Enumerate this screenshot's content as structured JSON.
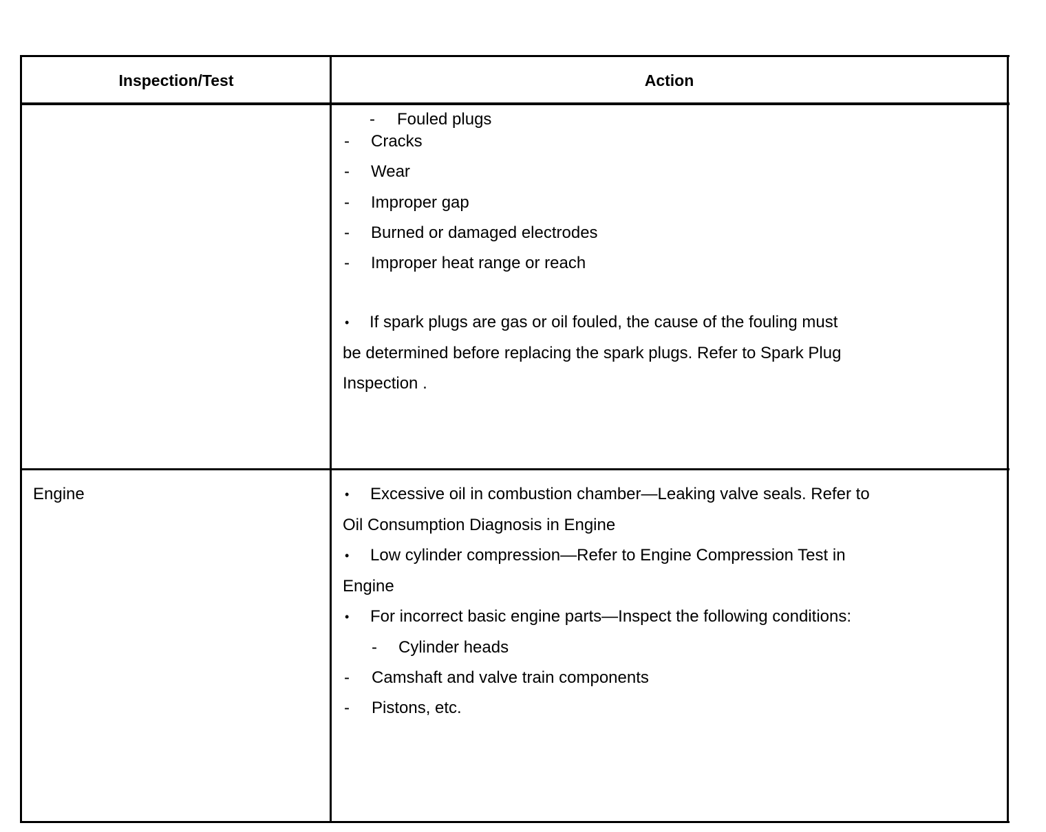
{
  "table": {
    "headers": [
      "Inspection/Test",
      "Action"
    ],
    "rows": [
      {
        "inspection": "",
        "action_lines": [
          {
            "marker": "-",
            "text": "Fouled plugs"
          },
          {
            "marker": "-",
            "text": "Cracks"
          },
          {
            "marker": "-",
            "text": "Wear"
          },
          {
            "marker": "-",
            "text": "Improper gap"
          },
          {
            "marker": "-",
            "text": "Burned or damaged electrodes"
          },
          {
            "marker": "-",
            "text": "Improper heat range or reach"
          },
          {
            "marker": "•",
            "text": "If spark plugs are gas or oil fouled, the cause of the fouling must"
          },
          {
            "marker": "",
            "text": "be determined before replacing the spark plugs. Refer to Spark Plug"
          },
          {
            "marker": "",
            "text": "Inspection ."
          }
        ]
      },
      {
        "inspection": "Engine",
        "action_lines": [
          {
            "marker": "•",
            "text": "Excessive oil in combustion chamber—Leaking valve seals. Refer to"
          },
          {
            "marker": "",
            "text": "Oil Consumption Diagnosis in Engine"
          },
          {
            "marker": "•",
            "text": "Low cylinder compression—Refer to Engine Compression Test in"
          },
          {
            "marker": "",
            "text": "Engine"
          },
          {
            "marker": "•",
            "text": "For incorrect basic engine parts—Inspect the following conditions:"
          },
          {
            "marker": "-",
            "text": "Cylinder heads"
          },
          {
            "marker": "-",
            "text": "Camshaft and valve train components"
          },
          {
            "marker": "-",
            "text": "Pistons, etc."
          }
        ]
      }
    ]
  }
}
